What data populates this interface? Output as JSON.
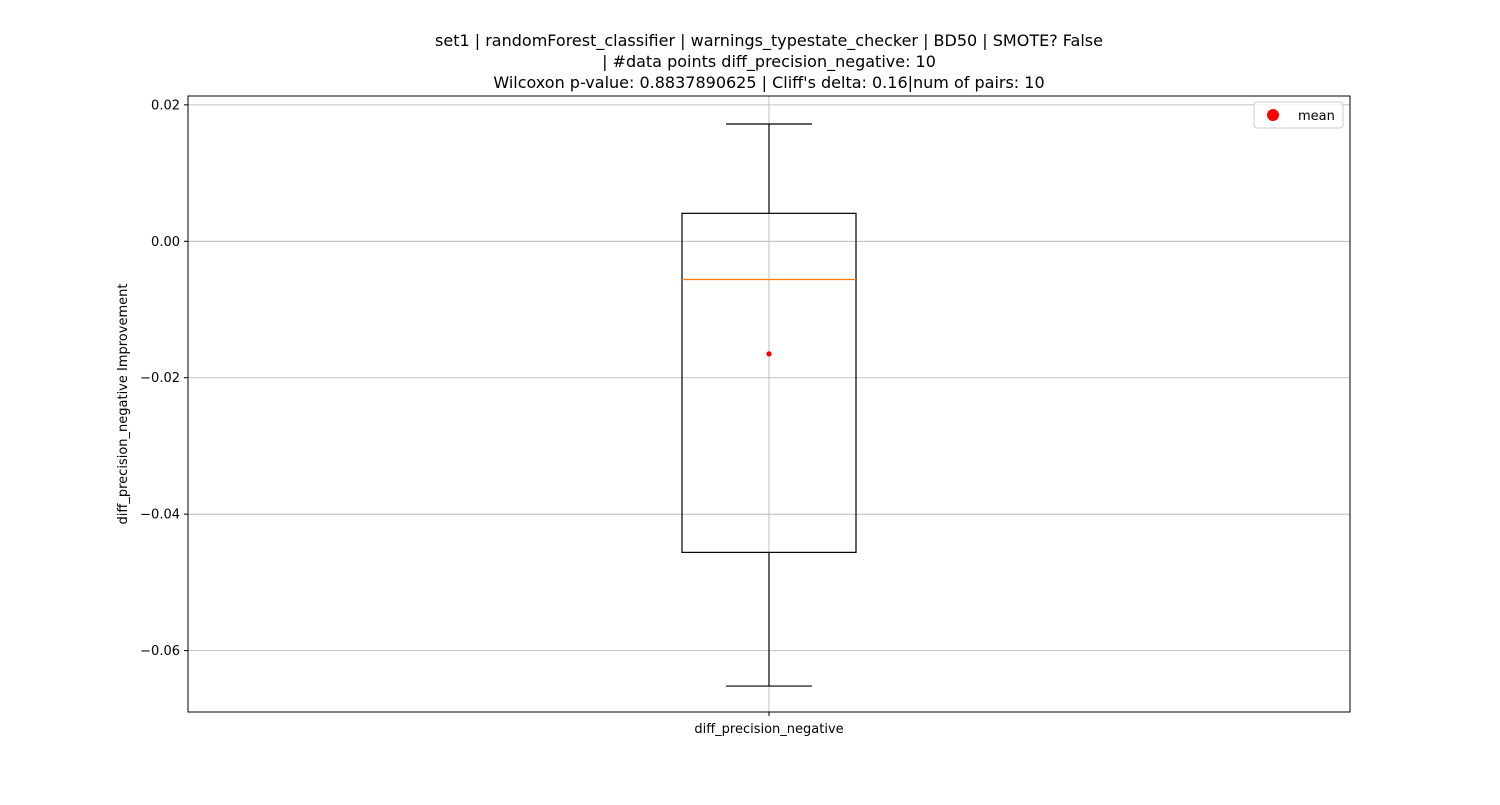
{
  "chart_data": {
    "type": "box",
    "title_lines": [
      "set1 | randomForest_classifier | warnings_typestate_checker | BD50 | SMOTE? False",
      "| #data points diff_precision_negative: 10",
      "Wilcoxon p-value: 0.8837890625 | Cliff's delta: 0.16|num of pairs: 10"
    ],
    "xlabel": "",
    "ylabel": "diff_precision_negative Improvement",
    "categories": [
      "diff_precision_negative"
    ],
    "ylim": [
      -0.069,
      0.0213
    ],
    "yticks": [
      0.02,
      0.0,
      -0.02,
      -0.04,
      -0.06
    ],
    "ytick_labels": [
      "0.02",
      "0.00",
      "−0.02",
      "−0.04",
      "−0.06"
    ],
    "grid": true,
    "boxes": [
      {
        "label": "diff_precision_negative",
        "whisker_low": -0.0652,
        "q1": -0.0456,
        "median": -0.0056,
        "q3": 0.0041,
        "whisker_high": 0.0172,
        "mean": -0.0165
      }
    ],
    "legend": {
      "position": "top-right",
      "entries": [
        {
          "label": "mean",
          "marker": "circle",
          "color": "#ff0000"
        }
      ]
    },
    "colors": {
      "box": "#000000",
      "median": "#ff7f0e",
      "mean": "#ff0000",
      "grid": "#b0b0b0"
    }
  }
}
